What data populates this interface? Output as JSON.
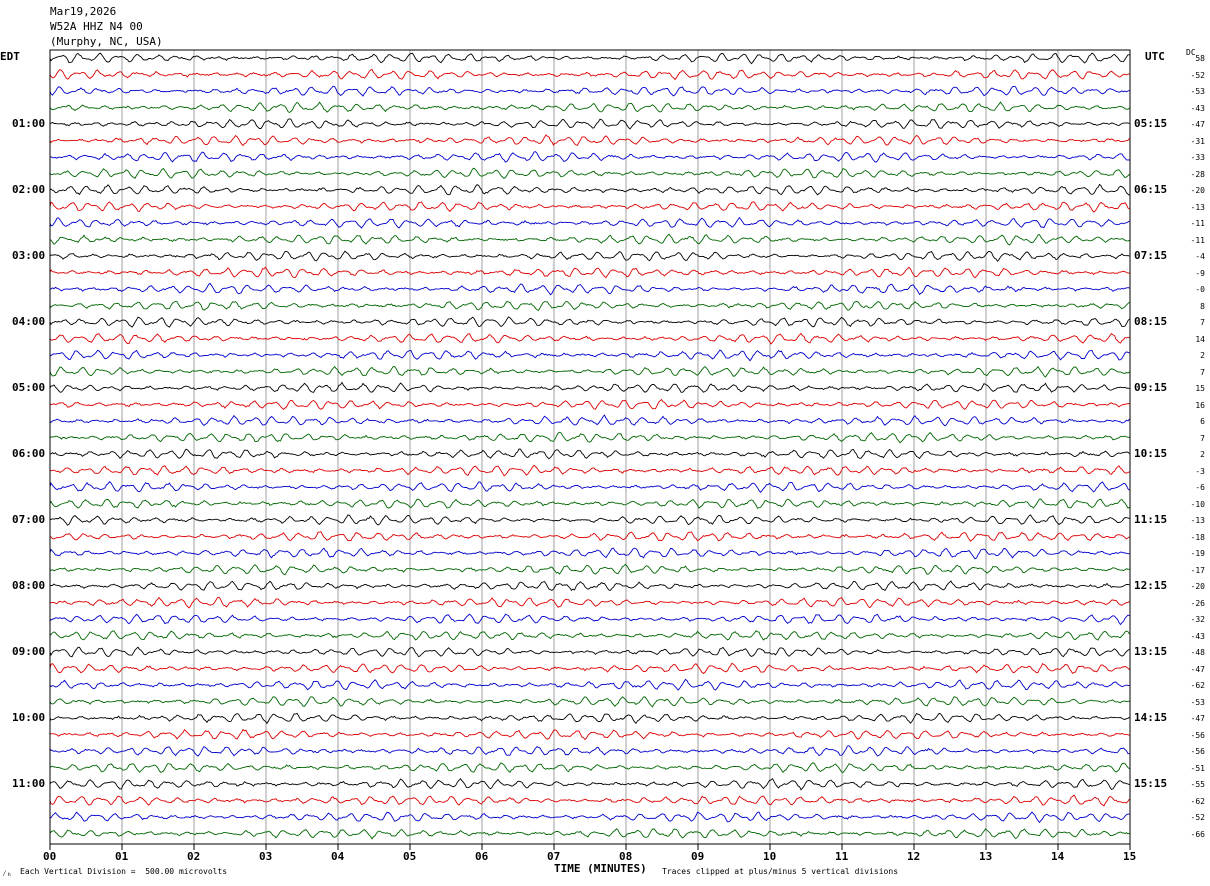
{
  "header": {
    "date": "Mar19,2026",
    "station": "W52A HHZ N4 00",
    "location": "(Murphy, NC, USA)"
  },
  "left_zone_label": "EDT",
  "right_zone_label": "UTC",
  "dc_label": "DC",
  "footer": {
    "scale_note": "Each Vertical Division =  500.00 microvolts",
    "xlabel": "TIME (MINUTES)",
    "clip_note": "Traces clipped at plus/minus 5 vertical divisions",
    "corner_mark": "⁄ₕ"
  },
  "colors": {
    "cycle": [
      "#000000",
      "#dd0000",
      "#0000cc",
      "#006600"
    ],
    "grid": "#888888"
  },
  "chart_data": {
    "type": "line",
    "title": "",
    "xlabel": "TIME (MINUTES)",
    "x_ticks": [
      "00",
      "01",
      "02",
      "03",
      "04",
      "05",
      "06",
      "07",
      "08",
      "09",
      "10",
      "11",
      "12",
      "13",
      "14",
      "15"
    ],
    "xlim": [
      0,
      15
    ],
    "left_hour_labels": [
      "01:00",
      "02:00",
      "03:00",
      "04:00",
      "05:00",
      "06:00",
      "07:00",
      "08:00",
      "09:00",
      "10:00",
      "11:00"
    ],
    "right_hour_labels": [
      "05:15",
      "06:15",
      "07:15",
      "08:15",
      "09:15",
      "10:15",
      "11:15",
      "12:15",
      "13:15",
      "14:15",
      "15:15"
    ],
    "dc_offsets": [
      "58",
      "-52",
      "-53",
      "-43",
      "-47",
      "-31",
      "-33",
      "-28",
      "-20",
      "-13",
      "-11",
      "-11",
      "-4",
      "-9",
      "-0",
      "8",
      "7",
      "14",
      "2",
      "7",
      "15",
      "16",
      "6",
      "7",
      "2",
      "-3",
      "-6",
      "-10",
      "-13",
      "-18",
      "-19",
      "-17",
      "-20",
      "-26",
      "-32",
      "-43",
      "-48",
      "-47",
      "-62",
      "-53",
      "-47",
      "-56",
      "-56",
      "-51",
      "-55",
      "-62",
      "-52",
      "-66"
    ],
    "traces_per_hour": 4,
    "trace_count": 48,
    "clip_note": "Traces clipped at plus/minus 5 vertical divisions"
  }
}
